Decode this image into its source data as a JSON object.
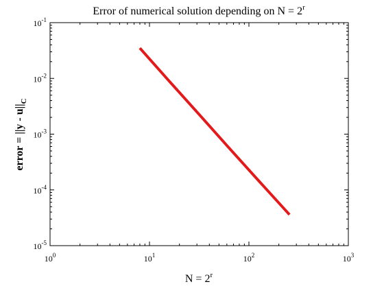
{
  "chart_data": {
    "type": "line",
    "title": {
      "prefix": "Error of numerical solution depending on N = 2",
      "sup": "r"
    },
    "xlabel": {
      "main": "N = 2",
      "sup": "r"
    },
    "ylabel": {
      "main": "error = ||y - u||",
      "sub": "C"
    },
    "x_scale": "log",
    "y_scale": "log",
    "xlim": [
      1,
      1000
    ],
    "ylim": [
      1e-05,
      0.1
    ],
    "grid": false,
    "legend": "none",
    "x_ticks": [
      {
        "value": 1,
        "base": "10",
        "exp": "0"
      },
      {
        "value": 10,
        "base": "10",
        "exp": "1"
      },
      {
        "value": 100,
        "base": "10",
        "exp": "2"
      },
      {
        "value": 1000,
        "base": "10",
        "exp": "3"
      }
    ],
    "y_ticks": [
      {
        "value": 1e-05,
        "base": "10",
        "exp": "-5"
      },
      {
        "value": 0.0001,
        "base": "10",
        "exp": "-4"
      },
      {
        "value": 0.001,
        "base": "10",
        "exp": "-3"
      },
      {
        "value": 0.01,
        "base": "10",
        "exp": "-2"
      },
      {
        "value": 0.1,
        "base": "10",
        "exp": "-1"
      }
    ],
    "series": [
      {
        "color": "#e31a1c",
        "points": [
          {
            "x": 8,
            "y": 0.035
          },
          {
            "x": 16,
            "y": 0.0087
          },
          {
            "x": 32,
            "y": 0.0022
          },
          {
            "x": 64,
            "y": 0.00055
          },
          {
            "x": 128,
            "y": 0.00014
          },
          {
            "x": 256,
            "y": 3.6e-05
          }
        ]
      }
    ]
  }
}
